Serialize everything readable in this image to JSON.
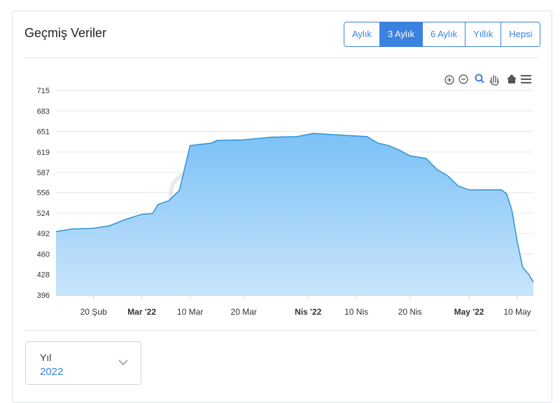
{
  "header": {
    "title": "Geçmiş Veriler"
  },
  "range_buttons": [
    "Aylık",
    "3 Aylık",
    "6 Aylık",
    "Yıllık",
    "Hepsi"
  ],
  "active_range": 1,
  "watermark": "inşaatnoktası",
  "select": {
    "label": "Yıl",
    "value": "2022"
  },
  "chart_data": {
    "type": "area",
    "color": "#2e93d6",
    "x": [
      "2022-02-13",
      "2022-02-16",
      "2022-02-20",
      "2022-02-23",
      "2022-02-26",
      "2022-03-01",
      "2022-03-03",
      "2022-03-04",
      "2022-03-06",
      "2022-03-08",
      "2022-03-09",
      "2022-03-10",
      "2022-03-12",
      "2022-03-14",
      "2022-03-15",
      "2022-03-20",
      "2022-03-25",
      "2022-03-30",
      "2022-04-02",
      "2022-04-06",
      "2022-04-10",
      "2022-04-12",
      "2022-04-14",
      "2022-04-16",
      "2022-04-18",
      "2022-04-20",
      "2022-04-23",
      "2022-04-25",
      "2022-04-27",
      "2022-04-29",
      "2022-05-01",
      "2022-05-05",
      "2022-05-07",
      "2022-05-08",
      "2022-05-09",
      "2022-05-10",
      "2022-05-11",
      "2022-05-12",
      "2022-05-13"
    ],
    "values": [
      495,
      499,
      500,
      504,
      514,
      522,
      523,
      537,
      543,
      559,
      594,
      629,
      631,
      633,
      637,
      638,
      642,
      643,
      648,
      646,
      644,
      643,
      633,
      629,
      622,
      613,
      609,
      592,
      582,
      566,
      560,
      560,
      560,
      554,
      528,
      479,
      439,
      430,
      416
    ],
    "xlim": [
      "2022-02-13",
      "2022-05-13"
    ],
    "xticks": [
      {
        "value": "2022-02-20",
        "label": "20 Şub"
      },
      {
        "value": "2022-03-01",
        "label": "Mar '22"
      },
      {
        "value": "2022-03-10",
        "label": "10 Mar"
      },
      {
        "value": "2022-03-20",
        "label": "20 Mar"
      },
      {
        "value": "2022-04-01",
        "label": "Nis '22"
      },
      {
        "value": "2022-04-10",
        "label": "10 Nis"
      },
      {
        "value": "2022-04-20",
        "label": "20 Nis"
      },
      {
        "value": "2022-05-01",
        "label": "May '22"
      },
      {
        "value": "2022-05-10",
        "label": "10 May"
      }
    ],
    "ylim": [
      396,
      715
    ],
    "yticks": [
      396,
      428,
      460,
      492,
      524,
      556,
      587,
      619,
      651,
      683,
      715
    ],
    "grid": true
  }
}
